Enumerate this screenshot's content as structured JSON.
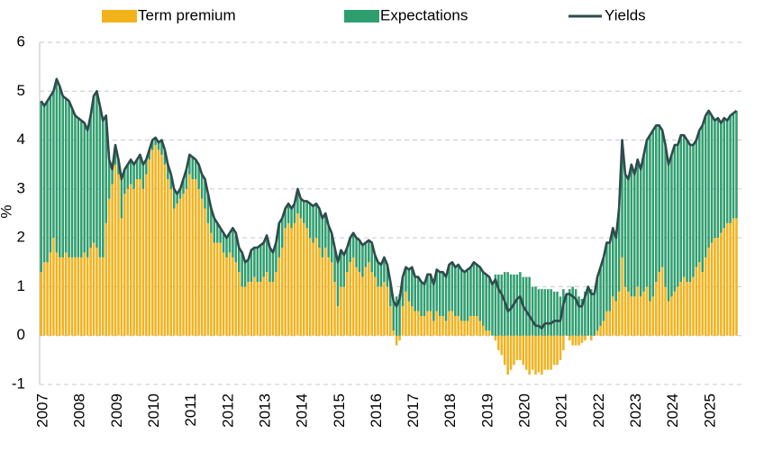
{
  "chart_data": {
    "type": "bar",
    "stacked": true,
    "ylabel": "%",
    "grid": true,
    "legend": "top",
    "ylim": [
      -1,
      6
    ],
    "yticks": [
      -1,
      0,
      1,
      2,
      3,
      4,
      5,
      6
    ],
    "categories": [
      "2007",
      null,
      null,
      null,
      null,
      null,
      null,
      null,
      null,
      null,
      null,
      null,
      "2008",
      null,
      null,
      null,
      null,
      null,
      null,
      null,
      null,
      null,
      null,
      null,
      "2009",
      null,
      null,
      null,
      null,
      null,
      null,
      null,
      null,
      null,
      null,
      null,
      "2010",
      null,
      null,
      null,
      null,
      null,
      null,
      null,
      null,
      null,
      null,
      null,
      "2011",
      null,
      null,
      null,
      null,
      null,
      null,
      null,
      null,
      null,
      null,
      null,
      "2012",
      null,
      null,
      null,
      null,
      null,
      null,
      null,
      null,
      null,
      null,
      null,
      "2013",
      null,
      null,
      null,
      null,
      null,
      null,
      null,
      null,
      null,
      null,
      null,
      "2014",
      null,
      null,
      null,
      null,
      null,
      null,
      null,
      null,
      null,
      null,
      null,
      "2015",
      null,
      null,
      null,
      null,
      null,
      null,
      null,
      null,
      null,
      null,
      null,
      "2016",
      null,
      null,
      null,
      null,
      null,
      null,
      null,
      null,
      null,
      null,
      null,
      "2017",
      null,
      null,
      null,
      null,
      null,
      null,
      null,
      null,
      null,
      null,
      null,
      "2018",
      null,
      null,
      null,
      null,
      null,
      null,
      null,
      null,
      null,
      null,
      null,
      "2019",
      null,
      null,
      null,
      null,
      null,
      null,
      null,
      null,
      null,
      null,
      null,
      "2020",
      null,
      null,
      null,
      null,
      null,
      null,
      null,
      null,
      null,
      null,
      null,
      "2021",
      null,
      null,
      null,
      null,
      null,
      null,
      null,
      null,
      null,
      null,
      null,
      "2022",
      null,
      null,
      null,
      null,
      null,
      null,
      null,
      null,
      null,
      null,
      null,
      "2023",
      null,
      null,
      null,
      null,
      null,
      null,
      null,
      null,
      null,
      null,
      null,
      "2024",
      null,
      null,
      null,
      null,
      null,
      null,
      null,
      null,
      null,
      null,
      null,
      "2025",
      null,
      null,
      null,
      null,
      null,
      null,
      null,
      null,
      null
    ],
    "series": [
      {
        "name": "Term premium",
        "type": "bar",
        "color": "#f2b21c",
        "values": [
          1.3,
          1.5,
          1.5,
          1.7,
          2.0,
          1.7,
          1.6,
          1.6,
          1.7,
          1.6,
          1.6,
          1.6,
          1.6,
          1.6,
          1.7,
          1.6,
          1.8,
          1.9,
          1.8,
          1.6,
          1.6,
          2.3,
          2.8,
          3.1,
          3.5,
          3.3,
          2.4,
          2.9,
          3.0,
          3.1,
          3.0,
          3.2,
          3.2,
          3.0,
          3.3,
          3.6,
          3.8,
          3.9,
          3.8,
          3.7,
          3.5,
          3.2,
          3.0,
          2.6,
          2.7,
          2.8,
          2.9,
          3.0,
          3.3,
          3.2,
          3.2,
          3.0,
          2.8,
          2.6,
          2.3,
          2.1,
          1.9,
          1.9,
          1.9,
          1.7,
          1.6,
          1.7,
          1.6,
          1.5,
          1.3,
          1.0,
          1.0,
          1.1,
          1.1,
          1.2,
          1.1,
          1.1,
          1.2,
          1.3,
          1.1,
          1.1,
          1.3,
          1.6,
          1.8,
          2.2,
          2.3,
          2.2,
          2.3,
          2.5,
          2.4,
          2.3,
          2.2,
          2.0,
          1.9,
          2.0,
          1.8,
          1.6,
          1.8,
          1.6,
          1.5,
          1.1,
          0.6,
          1.0,
          1.0,
          1.3,
          1.5,
          1.6,
          1.4,
          1.3,
          1.2,
          1.4,
          1.5,
          1.3,
          1.2,
          1.0,
          1.0,
          1.1,
          1.0,
          0.6,
          0.1,
          -0.2,
          -0.1,
          0.6,
          0.9,
          0.7,
          0.6,
          0.5,
          0.5,
          0.4,
          0.4,
          0.5,
          0.5,
          0.3,
          0.5,
          0.4,
          0.4,
          0.3,
          0.5,
          0.5,
          0.4,
          0.4,
          0.3,
          0.3,
          0.3,
          0.4,
          0.4,
          0.4,
          0.3,
          0.2,
          0.1,
          0.1,
          0.0,
          -0.1,
          -0.3,
          -0.4,
          -0.6,
          -0.8,
          -0.7,
          -0.6,
          -0.5,
          -0.5,
          -0.6,
          -0.7,
          -0.8,
          -0.7,
          -0.8,
          -0.75,
          -0.8,
          -0.7,
          -0.7,
          -0.7,
          -0.6,
          -0.6,
          -0.5,
          -0.3,
          0.0,
          -0.1,
          -0.2,
          -0.2,
          -0.2,
          -0.15,
          -0.1,
          0.0,
          -0.1,
          0.0,
          0.1,
          0.2,
          0.3,
          0.5,
          0.5,
          0.8,
          0.7,
          0.9,
          1.6,
          1.0,
          0.9,
          0.8,
          0.8,
          1.0,
          0.8,
          0.9,
          1.0,
          0.7,
          0.8,
          1.1,
          1.3,
          1.4,
          1.0,
          0.7,
          0.8,
          0.9,
          1.0,
          1.1,
          1.2,
          1.1,
          1.1,
          1.2,
          1.4,
          1.5,
          1.3,
          1.6,
          1.8,
          1.9,
          2.0,
          2.0,
          2.1,
          2.2,
          2.3,
          2.3,
          2.4,
          2.4
        ]
      },
      {
        "name": "Expectations",
        "type": "bar",
        "color": "#2f9e6f",
        "values": [
          3.5,
          3.2,
          3.3,
          3.2,
          3.0,
          3.55,
          3.5,
          3.3,
          3.15,
          3.2,
          3.05,
          2.9,
          2.85,
          2.8,
          2.65,
          2.6,
          2.7,
          3.0,
          3.2,
          3.1,
          2.8,
          2.2,
          0.8,
          0.3,
          0.4,
          0.3,
          0.8,
          0.5,
          0.5,
          0.5,
          0.5,
          0.4,
          0.5,
          0.5,
          0.3,
          0.2,
          0.2,
          0.15,
          0.15,
          0.3,
          0.3,
          0.3,
          0.3,
          0.4,
          0.2,
          0.2,
          0.3,
          0.4,
          0.4,
          0.45,
          0.4,
          0.5,
          0.5,
          0.6,
          0.6,
          0.5,
          0.5,
          0.4,
          0.3,
          0.4,
          0.4,
          0.4,
          0.6,
          0.6,
          0.5,
          0.7,
          0.5,
          0.45,
          0.65,
          0.6,
          0.7,
          0.75,
          0.7,
          0.75,
          0.7,
          0.6,
          0.6,
          0.7,
          0.6,
          0.4,
          0.4,
          0.4,
          0.4,
          0.5,
          0.4,
          0.45,
          0.55,
          0.7,
          0.75,
          0.7,
          0.8,
          0.8,
          0.7,
          0.65,
          0.6,
          0.7,
          0.9,
          0.75,
          0.65,
          0.5,
          0.5,
          0.5,
          0.6,
          0.65,
          0.65,
          0.5,
          0.45,
          0.6,
          0.45,
          0.5,
          0.45,
          0.5,
          0.45,
          0.5,
          0.6,
          0.8,
          0.85,
          0.6,
          0.5,
          0.65,
          0.8,
          0.7,
          0.7,
          0.7,
          0.65,
          0.75,
          0.75,
          0.75,
          0.85,
          0.9,
          0.9,
          0.9,
          0.95,
          1.0,
          1.0,
          1.05,
          1.05,
          1.0,
          1.05,
          1.0,
          1.1,
          1.05,
          1.1,
          1.1,
          1.15,
          1.1,
          1.05,
          1.25,
          1.25,
          1.25,
          1.3,
          1.3,
          1.25,
          1.25,
          1.25,
          1.3,
          1.2,
          1.2,
          1.2,
          1.0,
          1.0,
          0.95,
          0.95,
          0.95,
          0.95,
          0.95,
          0.9,
          0.9,
          0.8,
          0.95,
          0.85,
          0.95,
          1.0,
          0.95,
          0.8,
          0.75,
          0.9,
          1.0,
          0.95,
          0.85,
          1.1,
          1.2,
          1.3,
          1.4,
          1.4,
          1.4,
          1.3,
          1.7,
          2.4,
          2.3,
          2.3,
          2.7,
          2.5,
          2.6,
          2.6,
          2.8,
          3.0,
          3.4,
          3.4,
          3.2,
          3.0,
          2.8,
          2.9,
          2.8,
          2.9,
          3.0,
          2.9,
          3.0,
          2.9,
          2.9,
          2.8,
          2.7,
          2.6,
          2.7,
          3.0,
          2.9,
          2.8,
          2.6,
          2.4,
          2.45,
          2.25,
          2.25,
          2.1,
          2.2,
          2.15,
          2.2
        ]
      },
      {
        "name": "Yields",
        "type": "line",
        "color": "#2f4b4d",
        "values": [
          4.8,
          4.7,
          4.8,
          4.9,
          5.0,
          5.25,
          5.1,
          4.9,
          4.85,
          4.8,
          4.65,
          4.5,
          4.45,
          4.4,
          4.35,
          4.2,
          4.5,
          4.9,
          5.0,
          4.7,
          4.4,
          4.5,
          3.6,
          3.4,
          3.9,
          3.6,
          3.2,
          3.4,
          3.5,
          3.6,
          3.5,
          3.6,
          3.7,
          3.5,
          3.6,
          3.8,
          4.0,
          4.05,
          3.95,
          4.0,
          3.8,
          3.5,
          3.3,
          3.0,
          2.9,
          3.0,
          3.2,
          3.4,
          3.7,
          3.65,
          3.6,
          3.5,
          3.3,
          3.2,
          2.9,
          2.6,
          2.4,
          2.3,
          2.2,
          2.1,
          2.0,
          2.1,
          2.2,
          2.1,
          1.8,
          1.7,
          1.5,
          1.55,
          1.75,
          1.8,
          1.8,
          1.85,
          1.9,
          2.05,
          1.8,
          1.7,
          1.9,
          2.3,
          2.4,
          2.6,
          2.7,
          2.6,
          2.7,
          3.0,
          2.8,
          2.75,
          2.75,
          2.7,
          2.65,
          2.7,
          2.6,
          2.4,
          2.5,
          2.25,
          2.1,
          1.8,
          1.5,
          1.75,
          1.65,
          1.8,
          2.0,
          2.1,
          2.0,
          1.95,
          1.85,
          1.9,
          1.95,
          1.9,
          1.65,
          1.5,
          1.45,
          1.6,
          1.45,
          1.1,
          0.7,
          0.6,
          0.75,
          1.2,
          1.4,
          1.35,
          1.4,
          1.2,
          1.2,
          1.1,
          1.05,
          1.25,
          1.25,
          1.05,
          1.35,
          1.3,
          1.3,
          1.2,
          1.45,
          1.5,
          1.4,
          1.45,
          1.35,
          1.3,
          1.35,
          1.4,
          1.5,
          1.45,
          1.4,
          1.3,
          1.25,
          1.2,
          1.05,
          1.15,
          0.95,
          0.85,
          0.7,
          0.5,
          0.55,
          0.65,
          0.75,
          0.8,
          0.6,
          0.5,
          0.4,
          0.3,
          0.2,
          0.2,
          0.15,
          0.25,
          0.25,
          0.25,
          0.3,
          0.3,
          0.3,
          0.65,
          0.85,
          0.85,
          0.8,
          0.75,
          0.6,
          0.6,
          0.8,
          1.0,
          0.85,
          0.85,
          1.2,
          1.4,
          1.6,
          1.9,
          1.9,
          2.2,
          2.0,
          2.6,
          4.0,
          3.3,
          3.2,
          3.5,
          3.3,
          3.6,
          3.4,
          3.7,
          4.0,
          4.1,
          4.2,
          4.3,
          4.3,
          4.2,
          3.9,
          3.5,
          3.7,
          3.9,
          3.9,
          4.1,
          4.1,
          4.0,
          3.9,
          3.9,
          4.0,
          4.2,
          4.3,
          4.5,
          4.6,
          4.5,
          4.4,
          4.45,
          4.35,
          4.45,
          4.4,
          4.5,
          4.55,
          4.6
        ]
      }
    ]
  }
}
